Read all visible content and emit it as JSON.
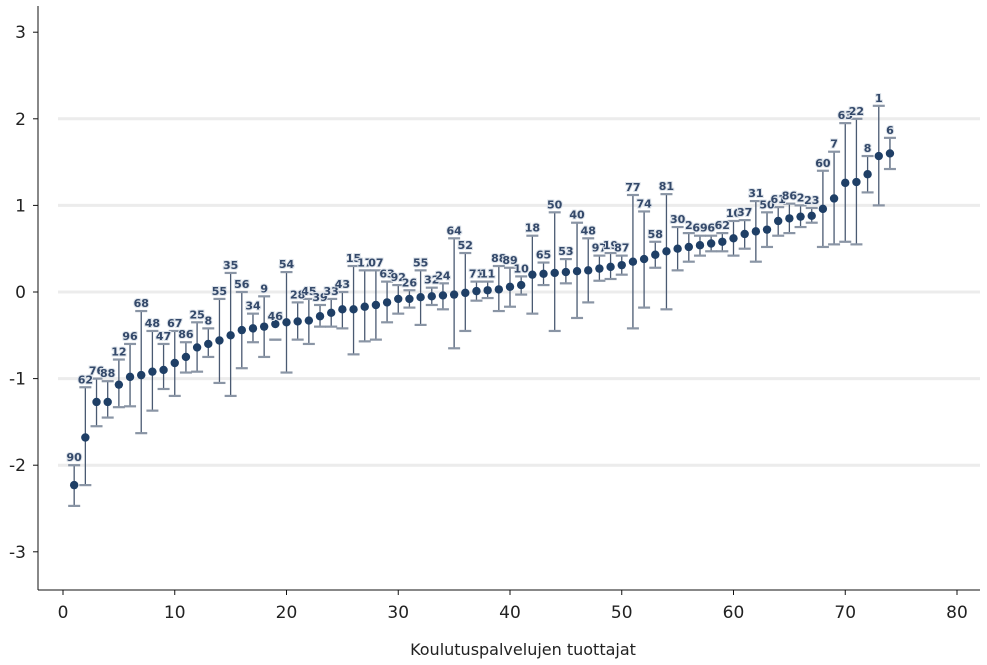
{
  "chart_data": {
    "type": "scatter",
    "subtype": "caterpillar-plot-with-confidence-intervals",
    "title": "",
    "xlabel": "Koulutuspalvelujen tuottajat",
    "ylabel": "",
    "xlim": [
      -1,
      82
    ],
    "ylim": [
      -3.45,
      3.45
    ],
    "x_ticks": [
      0,
      10,
      20,
      30,
      40,
      50,
      60,
      70,
      80
    ],
    "y_ticks": [
      -3,
      -2,
      -1,
      0,
      1,
      2,
      3
    ],
    "grid": "horizontal",
    "colors": {
      "point": "#1f3f66",
      "ci": "#4a5a72",
      "cap": "#8a95a5",
      "label": "#34496a",
      "grid": "#ececec"
    },
    "points": [
      {
        "x": 1,
        "y": -2.23,
        "lo": -2.47,
        "hi": -2.0,
        "label": "90"
      },
      {
        "x": 2,
        "y": -1.68,
        "lo": -2.23,
        "hi": -1.1,
        "label": "62"
      },
      {
        "x": 3,
        "y": -1.27,
        "lo": -1.55,
        "hi": -1.0,
        "label": "76"
      },
      {
        "x": 4,
        "y": -1.27,
        "lo": -1.45,
        "hi": -1.03,
        "label": "88"
      },
      {
        "x": 5,
        "y": -1.07,
        "lo": -1.33,
        "hi": -0.78,
        "label": "12"
      },
      {
        "x": 6,
        "y": -0.98,
        "lo": -1.32,
        "hi": -0.6,
        "label": "96"
      },
      {
        "x": 7,
        "y": -0.96,
        "lo": -1.63,
        "hi": -0.22,
        "label": "68"
      },
      {
        "x": 8,
        "y": -0.92,
        "lo": -1.37,
        "hi": -0.45,
        "label": "48"
      },
      {
        "x": 9,
        "y": -0.9,
        "lo": -1.12,
        "hi": -0.6,
        "label": "47"
      },
      {
        "x": 10,
        "y": -0.82,
        "lo": -1.2,
        "hi": -0.45,
        "label": "67"
      },
      {
        "x": 11,
        "y": -0.75,
        "lo": -0.93,
        "hi": -0.58,
        "label": "86"
      },
      {
        "x": 12,
        "y": -0.64,
        "lo": -0.92,
        "hi": -0.35,
        "label": "25"
      },
      {
        "x": 13,
        "y": -0.6,
        "lo": -0.75,
        "hi": -0.42,
        "label": "8"
      },
      {
        "x": 14,
        "y": -0.56,
        "lo": -1.05,
        "hi": -0.08,
        "label": "55"
      },
      {
        "x": 15,
        "y": -0.5,
        "lo": -1.2,
        "hi": 0.22,
        "label": "35"
      },
      {
        "x": 16,
        "y": -0.44,
        "lo": -0.88,
        "hi": 0.0,
        "label": "56"
      },
      {
        "x": 17,
        "y": -0.42,
        "lo": -0.58,
        "hi": -0.25,
        "label": "34"
      },
      {
        "x": 18,
        "y": -0.4,
        "lo": -0.75,
        "hi": -0.05,
        "label": "9"
      },
      {
        "x": 19,
        "y": -0.37,
        "lo": -0.55,
        "hi": -0.55,
        "label": "46"
      },
      {
        "x": 20,
        "y": -0.35,
        "lo": -0.93,
        "hi": 0.23,
        "label": "54"
      },
      {
        "x": 21,
        "y": -0.34,
        "lo": -0.55,
        "hi": -0.12,
        "label": "28"
      },
      {
        "x": 22,
        "y": -0.33,
        "lo": -0.6,
        "hi": -0.08,
        "label": "45"
      },
      {
        "x": 23,
        "y": -0.28,
        "lo": -0.4,
        "hi": -0.15,
        "label": "39"
      },
      {
        "x": 24,
        "y": -0.24,
        "lo": -0.4,
        "hi": -0.08,
        "label": "33"
      },
      {
        "x": 25,
        "y": -0.2,
        "lo": -0.42,
        "hi": 0.0,
        "label": "43"
      },
      {
        "x": 26,
        "y": -0.2,
        "lo": -0.72,
        "hi": 0.3,
        "label": "15"
      },
      {
        "x": 27,
        "y": -0.17,
        "lo": -0.57,
        "hi": 0.25,
        "label": "17"
      },
      {
        "x": 28,
        "y": -0.15,
        "lo": -0.55,
        "hi": 0.25,
        "label": "07"
      },
      {
        "x": 29,
        "y": -0.12,
        "lo": -0.35,
        "hi": 0.12,
        "label": "63"
      },
      {
        "x": 30,
        "y": -0.08,
        "lo": -0.25,
        "hi": 0.08,
        "label": "92"
      },
      {
        "x": 31,
        "y": -0.08,
        "lo": -0.18,
        "hi": 0.02,
        "label": "26"
      },
      {
        "x": 32,
        "y": -0.06,
        "lo": -0.38,
        "hi": 0.25,
        "label": "55"
      },
      {
        "x": 33,
        "y": -0.05,
        "lo": -0.15,
        "hi": 0.05,
        "label": "32"
      },
      {
        "x": 34,
        "y": -0.04,
        "lo": -0.2,
        "hi": 0.1,
        "label": "24"
      },
      {
        "x": 35,
        "y": -0.03,
        "lo": -0.65,
        "hi": 0.62,
        "label": "64"
      },
      {
        "x": 36,
        "y": -0.01,
        "lo": -0.45,
        "hi": 0.45,
        "label": "52"
      },
      {
        "x": 37,
        "y": 0.01,
        "lo": -0.1,
        "hi": 0.12,
        "label": "71"
      },
      {
        "x": 38,
        "y": 0.02,
        "lo": -0.07,
        "hi": 0.12,
        "label": "11"
      },
      {
        "x": 39,
        "y": 0.03,
        "lo": -0.22,
        "hi": 0.3,
        "label": "88"
      },
      {
        "x": 40,
        "y": 0.06,
        "lo": -0.17,
        "hi": 0.28,
        "label": "89"
      },
      {
        "x": 41,
        "y": 0.08,
        "lo": -0.03,
        "hi": 0.18,
        "label": "10"
      },
      {
        "x": 42,
        "y": 0.2,
        "lo": -0.25,
        "hi": 0.65,
        "label": "18"
      },
      {
        "x": 43,
        "y": 0.21,
        "lo": 0.08,
        "hi": 0.34,
        "label": "65"
      },
      {
        "x": 44,
        "y": 0.22,
        "lo": -0.45,
        "hi": 0.92,
        "label": "50"
      },
      {
        "x": 45,
        "y": 0.23,
        "lo": 0.1,
        "hi": 0.38,
        "label": "53"
      },
      {
        "x": 46,
        "y": 0.24,
        "lo": -0.3,
        "hi": 0.8,
        "label": "40"
      },
      {
        "x": 47,
        "y": 0.25,
        "lo": -0.12,
        "hi": 0.62,
        "label": "48"
      },
      {
        "x": 48,
        "y": 0.27,
        "lo": 0.13,
        "hi": 0.42,
        "label": "97"
      },
      {
        "x": 49,
        "y": 0.29,
        "lo": 0.15,
        "hi": 0.45,
        "label": "19"
      },
      {
        "x": 50,
        "y": 0.31,
        "lo": 0.2,
        "hi": 0.42,
        "label": "87"
      },
      {
        "x": 51,
        "y": 0.35,
        "lo": -0.42,
        "hi": 1.12,
        "label": "77"
      },
      {
        "x": 52,
        "y": 0.38,
        "lo": -0.18,
        "hi": 0.93,
        "label": "74"
      },
      {
        "x": 53,
        "y": 0.43,
        "lo": 0.28,
        "hi": 0.58,
        "label": "58"
      },
      {
        "x": 54,
        "y": 0.47,
        "lo": -0.2,
        "hi": 1.13,
        "label": "81"
      },
      {
        "x": 55,
        "y": 0.5,
        "lo": 0.25,
        "hi": 0.75,
        "label": "30"
      },
      {
        "x": 56,
        "y": 0.52,
        "lo": 0.35,
        "hi": 0.68,
        "label": "2"
      },
      {
        "x": 57,
        "y": 0.54,
        "lo": 0.42,
        "hi": 0.65,
        "label": "69"
      },
      {
        "x": 58,
        "y": 0.56,
        "lo": 0.47,
        "hi": 0.65,
        "label": "6"
      },
      {
        "x": 59,
        "y": 0.58,
        "lo": 0.47,
        "hi": 0.68,
        "label": "62"
      },
      {
        "x": 60,
        "y": 0.62,
        "lo": 0.42,
        "hi": 0.82,
        "label": "10"
      },
      {
        "x": 61,
        "y": 0.67,
        "lo": 0.5,
        "hi": 0.83,
        "label": "37"
      },
      {
        "x": 62,
        "y": 0.7,
        "lo": 0.35,
        "hi": 1.05,
        "label": "31"
      },
      {
        "x": 63,
        "y": 0.72,
        "lo": 0.52,
        "hi": 0.92,
        "label": "50"
      },
      {
        "x": 64,
        "y": 0.82,
        "lo": 0.65,
        "hi": 0.98,
        "label": "61"
      },
      {
        "x": 65,
        "y": 0.85,
        "lo": 0.68,
        "hi": 1.02,
        "label": "86"
      },
      {
        "x": 66,
        "y": 0.87,
        "lo": 0.75,
        "hi": 1.0,
        "label": "2"
      },
      {
        "x": 67,
        "y": 0.88,
        "lo": 0.8,
        "hi": 0.97,
        "label": "23"
      },
      {
        "x": 68,
        "y": 0.96,
        "lo": 0.52,
        "hi": 1.4,
        "label": "60"
      },
      {
        "x": 69,
        "y": 1.08,
        "lo": 0.55,
        "hi": 1.62,
        "label": "7"
      },
      {
        "x": 70,
        "y": 1.26,
        "lo": 0.58,
        "hi": 1.95,
        "label": "63"
      },
      {
        "x": 71,
        "y": 1.27,
        "lo": 0.55,
        "hi": 2.0,
        "label": "22"
      },
      {
        "x": 72,
        "y": 1.36,
        "lo": 1.15,
        "hi": 1.57,
        "label": "8"
      },
      {
        "x": 73,
        "y": 1.57,
        "lo": 1.0,
        "hi": 2.15,
        "label": "1"
      },
      {
        "x": 74,
        "y": 1.6,
        "lo": 1.42,
        "hi": 1.78,
        "label": "6"
      }
    ]
  }
}
